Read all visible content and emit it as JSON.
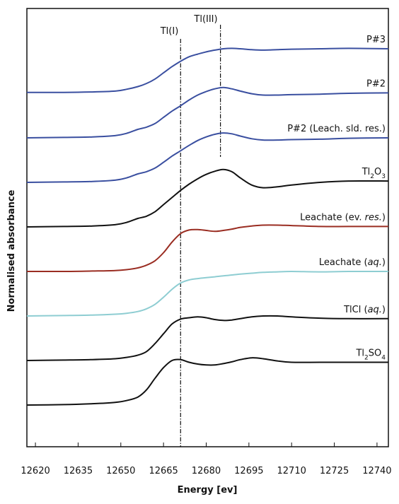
{
  "chart_data": {
    "type": "line",
    "title": "",
    "xlabel": "Energy [ev]",
    "ylabel": "Normalised absorbance",
    "xlim": [
      12617,
      12744
    ],
    "xticks": [
      12620,
      12635,
      12650,
      12665,
      12680,
      12695,
      12710,
      12725,
      12740
    ],
    "tick_labels": [
      "12620",
      "12635",
      "12650",
      "12665",
      "12680",
      "12695",
      "12710",
      "12725",
      "12740"
    ],
    "grid": false,
    "legend": "inline labels at right",
    "y_ticks_shown": false,
    "reference_lines": [
      {
        "label": "Tl(I)",
        "x": 12671
      },
      {
        "label": "Tl(III)",
        "x": 12685
      }
    ],
    "series": [
      {
        "name": "P#3",
        "label_parts": [
          {
            "t": "P#3"
          }
        ],
        "color": "#3a4fa0",
        "offset": 7.0,
        "x": [
          12617,
          12630,
          12640,
          12648,
          12652,
          12656,
          12659,
          12662,
          12665,
          12668,
          12671,
          12674,
          12677,
          12680,
          12683,
          12686,
          12689,
          12692,
          12696,
          12700,
          12705,
          12710,
          12720,
          12730,
          12744
        ],
        "y": [
          0.02,
          0.02,
          0.03,
          0.05,
          0.09,
          0.15,
          0.22,
          0.32,
          0.46,
          0.6,
          0.72,
          0.82,
          0.88,
          0.93,
          0.97,
          1.0,
          1.01,
          1.0,
          0.98,
          0.97,
          0.98,
          0.99,
          1.0,
          1.01,
          1.0
        ]
      },
      {
        "name": "P#2",
        "label_parts": [
          {
            "t": "P#2"
          }
        ],
        "color": "#3a4fa0",
        "offset": 6.0,
        "x": [
          12617,
          12630,
          12640,
          12648,
          12652,
          12656,
          12659,
          12662,
          12665,
          12668,
          12671,
          12674,
          12677,
          12680,
          12683,
          12686,
          12689,
          12692,
          12696,
          12700,
          12705,
          12710,
          12720,
          12730,
          12744
        ],
        "y": [
          0.0,
          0.01,
          0.02,
          0.05,
          0.1,
          0.19,
          0.24,
          0.32,
          0.46,
          0.6,
          0.72,
          0.85,
          0.96,
          1.04,
          1.1,
          1.13,
          1.1,
          1.05,
          0.99,
          0.96,
          0.96,
          0.97,
          0.98,
          1.0,
          1.01
        ]
      },
      {
        "name": "P#2 (Leach. sld. res.)",
        "label_parts": [
          {
            "t": "P#2 (Leach. sld. res.)"
          }
        ],
        "color": "#3a4fa0",
        "offset": 5.0,
        "x": [
          12617,
          12630,
          12640,
          12648,
          12652,
          12656,
          12659,
          12662,
          12665,
          12668,
          12671,
          12674,
          12677,
          12680,
          12683,
          12686,
          12689,
          12692,
          12696,
          12700,
          12705,
          12710,
          12720,
          12730,
          12744
        ],
        "y": [
          0.0,
          0.01,
          0.02,
          0.05,
          0.1,
          0.19,
          0.24,
          0.32,
          0.45,
          0.59,
          0.71,
          0.83,
          0.94,
          1.02,
          1.08,
          1.11,
          1.09,
          1.04,
          0.98,
          0.95,
          0.95,
          0.96,
          0.97,
          0.99,
          1.0
        ]
      },
      {
        "name": "Tl2O3",
        "label_parts": [
          {
            "t": "Tl"
          },
          {
            "t": "2",
            "sub": true
          },
          {
            "t": "O"
          },
          {
            "t": "3",
            "sub": true
          }
        ],
        "color": "#111111",
        "offset": 4.0,
        "x": [
          12617,
          12630,
          12640,
          12648,
          12652,
          12656,
          12659,
          12662,
          12665,
          12668,
          12671,
          12674,
          12677,
          12680,
          12683,
          12686,
          12689,
          12692,
          12696,
          12700,
          12705,
          12710,
          12720,
          12730,
          12744
        ],
        "y": [
          0.0,
          0.01,
          0.02,
          0.05,
          0.1,
          0.19,
          0.24,
          0.34,
          0.5,
          0.66,
          0.82,
          0.96,
          1.08,
          1.18,
          1.25,
          1.29,
          1.24,
          1.1,
          0.94,
          0.88,
          0.9,
          0.94,
          1.0,
          1.03,
          1.03
        ]
      },
      {
        "name": "Leachate (ev. res.)",
        "label_parts": [
          {
            "t": "Leachate (ev. "
          },
          {
            "t": "res.",
            "italic": true
          },
          {
            "t": ")"
          }
        ],
        "color": "#9a2d22",
        "offset": 3.0,
        "x": [
          12617,
          12630,
          12640,
          12648,
          12652,
          12656,
          12659,
          12662,
          12665,
          12668,
          12671,
          12674,
          12677,
          12680,
          12683,
          12686,
          12689,
          12692,
          12696,
          12700,
          12705,
          12710,
          12720,
          12730,
          12744
        ],
        "y": [
          0.0,
          0.0,
          0.01,
          0.02,
          0.04,
          0.08,
          0.14,
          0.24,
          0.42,
          0.66,
          0.85,
          0.93,
          0.94,
          0.92,
          0.9,
          0.92,
          0.95,
          0.99,
          1.02,
          1.04,
          1.04,
          1.03,
          1.01,
          1.01,
          1.01
        ]
      },
      {
        "name": "Leachate (aq.)",
        "label_parts": [
          {
            "t": "Leachate ("
          },
          {
            "t": "aq.",
            "italic": true
          },
          {
            "t": ")"
          }
        ],
        "color": "#8ecdd2",
        "offset": 2.0,
        "x": [
          12617,
          12630,
          12640,
          12648,
          12652,
          12656,
          12659,
          12662,
          12665,
          12668,
          12671,
          12674,
          12677,
          12680,
          12683,
          12686,
          12689,
          12692,
          12696,
          12700,
          12705,
          12710,
          12720,
          12730,
          12744
        ],
        "y": [
          0.0,
          0.01,
          0.02,
          0.04,
          0.06,
          0.1,
          0.16,
          0.26,
          0.42,
          0.6,
          0.74,
          0.81,
          0.84,
          0.86,
          0.88,
          0.9,
          0.92,
          0.94,
          0.96,
          0.98,
          0.99,
          1.0,
          0.99,
          1.0,
          1.0
        ]
      },
      {
        "name": "TlCl (aq.)",
        "label_parts": [
          {
            "t": "TlCl ("
          },
          {
            "t": "aq.",
            "italic": true
          },
          {
            "t": ")"
          }
        ],
        "color": "#111111",
        "offset": 1.0,
        "x": [
          12617,
          12630,
          12640,
          12648,
          12652,
          12656,
          12659,
          12662,
          12665,
          12668,
          12671,
          12674,
          12677,
          12680,
          12683,
          12686,
          12689,
          12692,
          12696,
          12700,
          12705,
          12710,
          12720,
          12730,
          12744
        ],
        "y": [
          0.0,
          0.01,
          0.02,
          0.04,
          0.07,
          0.12,
          0.2,
          0.38,
          0.6,
          0.82,
          0.93,
          0.96,
          0.98,
          0.96,
          0.92,
          0.9,
          0.91,
          0.94,
          0.98,
          1.0,
          1.0,
          0.98,
          0.95,
          0.94,
          0.94
        ]
      },
      {
        "name": "Tl2SO4",
        "label_parts": [
          {
            "t": "Tl"
          },
          {
            "t": "2",
            "sub": true
          },
          {
            "t": "SO"
          },
          {
            "t": "4",
            "sub": true
          }
        ],
        "color": "#111111",
        "offset": 0.0,
        "x": [
          12617,
          12630,
          12640,
          12648,
          12652,
          12656,
          12659,
          12662,
          12665,
          12668,
          12671,
          12674,
          12677,
          12680,
          12683,
          12686,
          12689,
          12692,
          12696,
          12700,
          12705,
          12710,
          12720,
          12730,
          12744
        ],
        "y": [
          0.0,
          0.01,
          0.03,
          0.06,
          0.1,
          0.18,
          0.34,
          0.6,
          0.84,
          1.0,
          1.02,
          0.96,
          0.92,
          0.9,
          0.9,
          0.93,
          0.97,
          1.02,
          1.06,
          1.04,
          0.99,
          0.96,
          0.96,
          0.96,
          0.96
        ]
      }
    ]
  }
}
